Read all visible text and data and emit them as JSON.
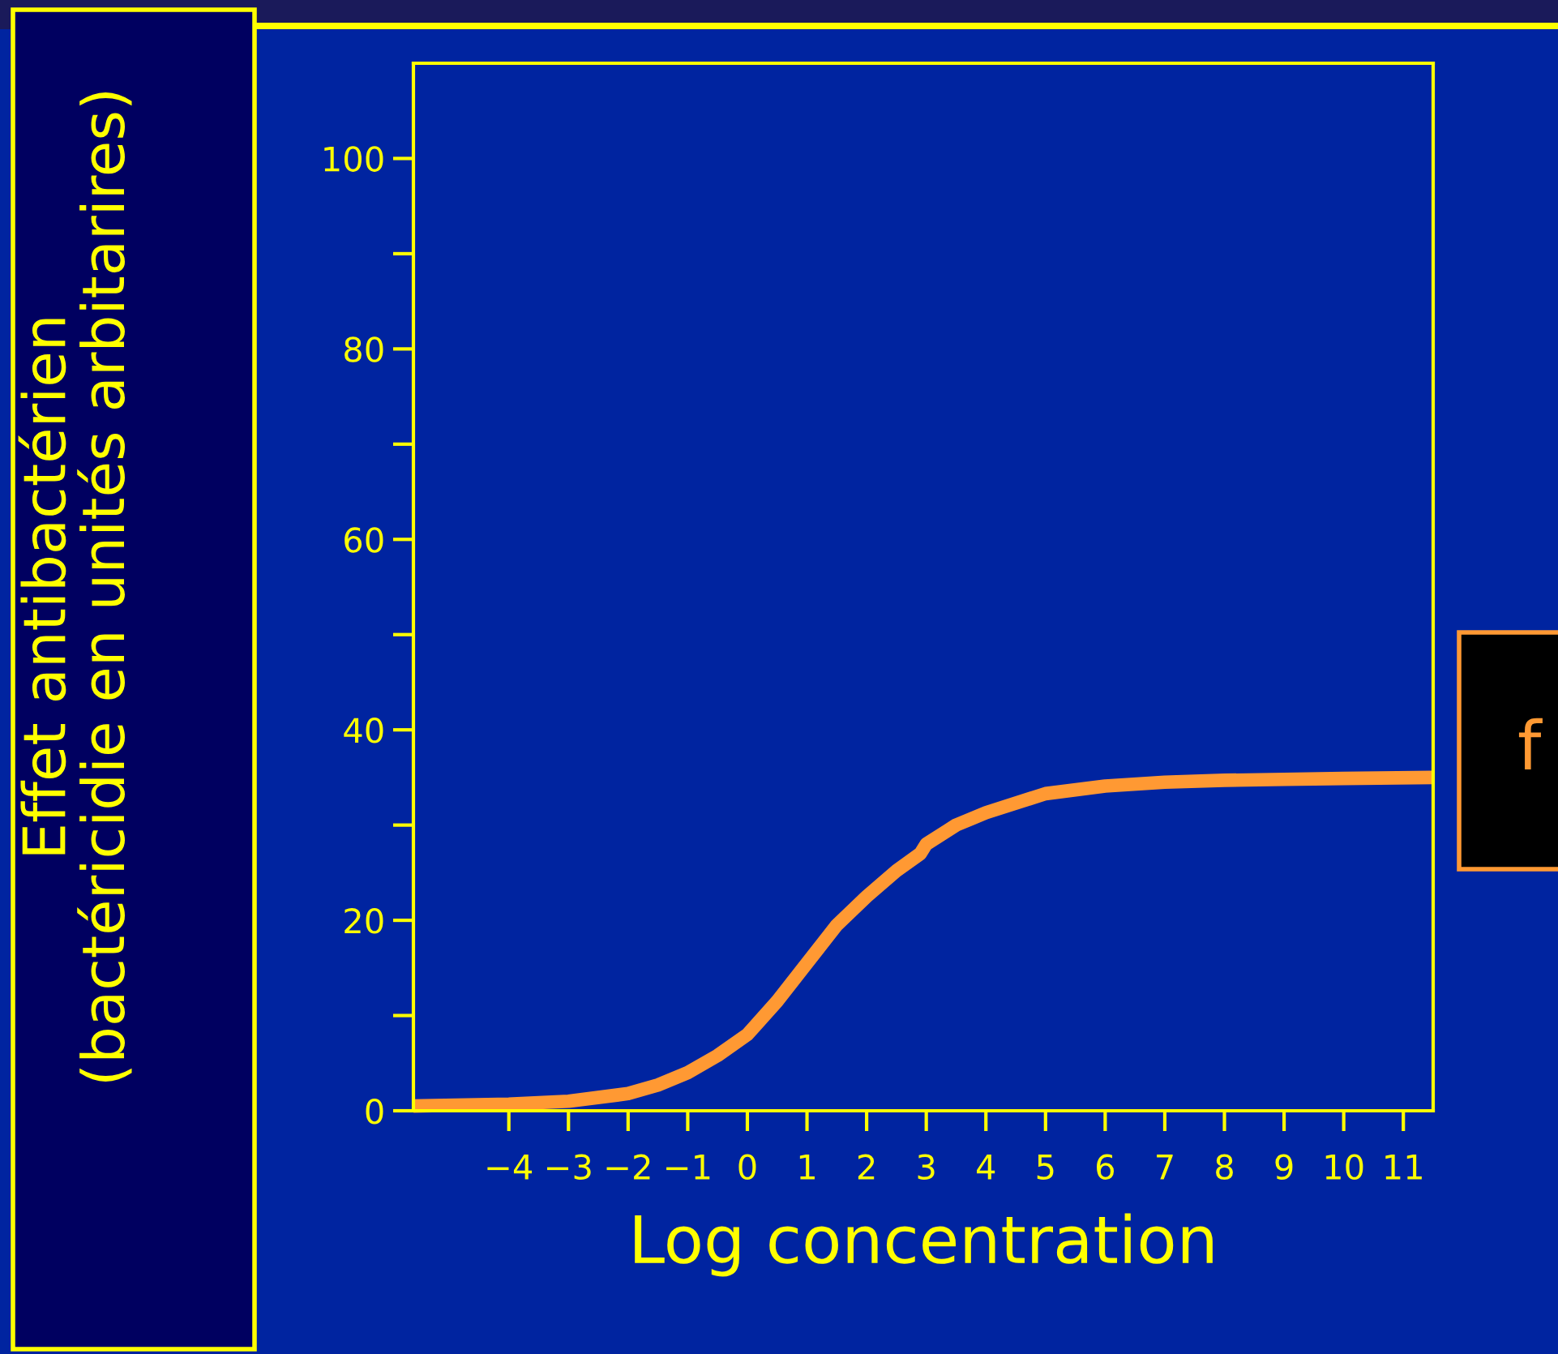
{
  "chart_data": {
    "type": "line",
    "xlabel": "Log concentration",
    "ylabel": "Effet antibactérien\n(bactéricidie en unités arbitarires)",
    "x": [
      -5.6,
      -4,
      -3,
      -2,
      -1.5,
      -1,
      -0.5,
      0,
      0.5,
      1,
      1.5,
      2,
      2.5,
      2.9,
      3,
      3.5,
      4,
      5,
      6,
      7,
      8,
      9,
      10,
      11.5
    ],
    "series": [
      {
        "color": "#ff9933",
        "values": [
          0.5,
          0.7,
          1,
          1.8,
          2.7,
          4,
          5.8,
          8,
          11.5,
          15.5,
          19.5,
          22.5,
          25.2,
          27,
          28,
          30,
          31.3,
          33.3,
          34.1,
          34.5,
          34.7,
          34.8,
          34.9,
          35
        ]
      }
    ],
    "xlim": [
      -5.6,
      11.5
    ],
    "xticks": [
      -4,
      -3,
      -2,
      -1,
      0,
      1,
      2,
      3,
      4,
      5,
      6,
      7,
      8,
      9,
      10,
      11
    ],
    "ylim": [
      0,
      110
    ],
    "yticks": [
      0,
      {
        "value": 10,
        "label": null
      },
      20,
      {
        "value": 30,
        "label": null
      },
      40,
      {
        "value": 50,
        "label": null
      },
      60,
      {
        "value": 70,
        "label": null
      },
      80,
      {
        "value": 90,
        "label": null
      },
      100
    ],
    "annotations": [
      "f"
    ],
    "grid": false,
    "legend": false,
    "marker": "none",
    "line_style": "solid"
  }
}
